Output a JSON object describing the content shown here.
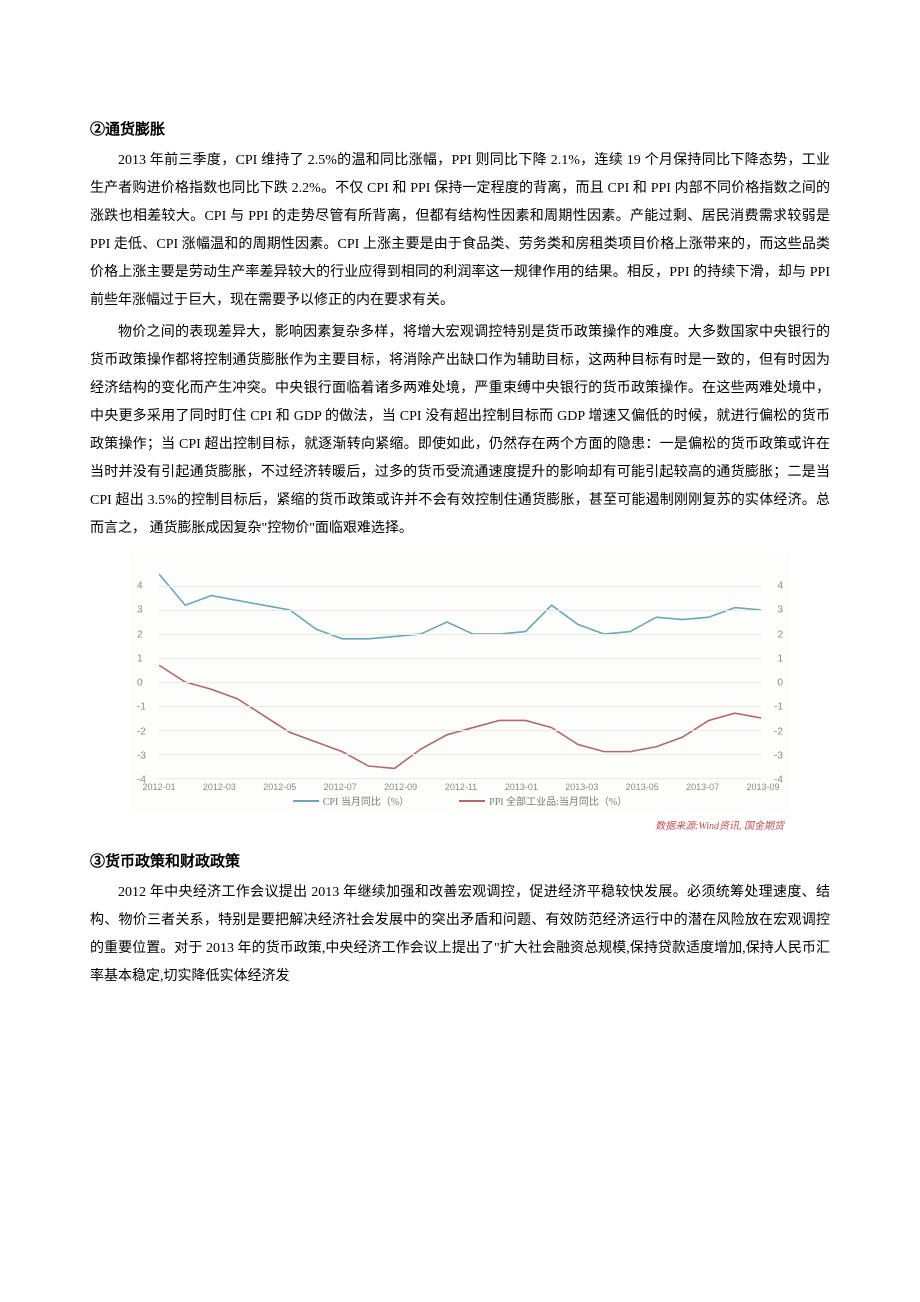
{
  "section2": {
    "heading": "②通货膨胀",
    "para1": "2013 年前三季度，CPI 维持了 2.5%的温和同比涨幅，PPI 则同比下降 2.1%，连续 19 个月保持同比下降态势，工业生产者购进价格指数也同比下跌 2.2%。不仅 CPI 和 PPI 保持一定程度的背离，而且 CPI 和 PPI 内部不同价格指数之间的涨跌也相差较大。CPI 与 PPI 的走势尽管有所背离，但都有结构性因素和周期性因素。产能过剩、居民消费需求较弱是 PPI 走低、CPI 涨幅温和的周期性因素。CPI 上涨主要是由于食品类、劳务类和房租类项目价格上涨带来的，而这些品类价格上涨主要是劳动生产率差异较大的行业应得到相同的利润率这一规律作用的结果。相反，PPI 的持续下滑，却与 PPI 前些年涨幅过于巨大，现在需要予以修正的内在要求有关。",
    "para2": "物价之间的表现差异大，影响因素复杂多样，将增大宏观调控特别是货币政策操作的难度。大多数国家中央银行的货币政策操作都将控制通货膨胀作为主要目标，将消除产出缺口作为辅助目标，这两种目标有时是一致的，但有时因为经济结构的变化而产生冲突。中央银行面临着诸多两难处境，严重束缚中央银行的货币政策操作。在这些两难处境中，中央更多采用了同时盯住 CPI 和 GDP 的做法，当 CPI 没有超出控制目标而 GDP 增速又偏低的时候，就进行偏松的货币政策操作；当 CPI 超出控制目标，就逐渐转向紧缩。即使如此，仍然存在两个方面的隐患：一是偏松的货币政策或许在当时并没有引起通货膨胀，不过经济转暖后，过多的货币受流通速度提升的影响却有可能引起较高的通货膨胀；二是当 CPI 超出 3.5%的控制目标后，紧缩的货币政策或许并不会有效控制住通货膨胀，甚至可能遏制刚刚复苏的实体经济。总而言之， 通货膨胀成因复杂\"控物价\"面临艰难选择。"
  },
  "chart": {
    "type": "line",
    "x_labels": [
      "2012-01",
      "2012-03",
      "2012-05",
      "2012-07",
      "2012-09",
      "2012-11",
      "2013-01",
      "2013-03",
      "2013-05",
      "2013-07",
      "2013-09"
    ],
    "ylim": [
      -4,
      5
    ],
    "ytick_step": 1,
    "y_ticks_left": [
      -4,
      -3,
      -2,
      -1,
      0,
      1,
      2,
      3,
      4
    ],
    "y_ticks_right": [
      -4,
      -3,
      -2,
      -1,
      0,
      1,
      2,
      3,
      4
    ],
    "background_color": "#fdfdfc",
    "grid_color": "#e9e9e8",
    "axis_label_color": "#8a8a88",
    "label_fontsize": 10,
    "line_width": 1.6,
    "series": [
      {
        "name": "CPI 当月同比（%）",
        "color": "#6aa7b8",
        "values": [
          4.5,
          3.2,
          3.6,
          3.4,
          3.2,
          3.0,
          2.2,
          1.8,
          1.8,
          1.9,
          2.0,
          2.5,
          2.0,
          2.0,
          2.1,
          3.2,
          2.4,
          2.0,
          2.1,
          2.7,
          2.6,
          2.7,
          3.1,
          3.0
        ]
      },
      {
        "name": "PPI 全部工业品:当月同比（%）",
        "color": "#b06a6a",
        "values": [
          0.7,
          0.0,
          -0.3,
          -0.7,
          -1.4,
          -2.1,
          -2.5,
          -2.9,
          -3.5,
          -3.6,
          -2.8,
          -2.2,
          -1.9,
          -1.6,
          -1.6,
          -1.9,
          -2.6,
          -2.9,
          -2.9,
          -2.7,
          -2.3,
          -1.6,
          -1.3,
          -1.5
        ]
      }
    ],
    "legend": {
      "items": [
        "CPI 当月同比（%）",
        "PPI 全部工业品:当月同比（%）"
      ],
      "position": "bottom"
    },
    "caption": "数据来源:Wind资讯, 国金期货"
  },
  "section3": {
    "heading": "③货币政策和财政政策",
    "para1": "2012 年中央经济工作会议提出 2013 年继续加强和改善宏观调控，促进经济平稳较快发展。必须统筹处理速度、结构、物价三者关系，特别是要把解决经济社会发展中的突出矛盾和问题、有效防范经济运行中的潜在风险放在宏观调控的重要位置。对于 2013 年的货币政策,中央经济工作会议上提出了\"扩大社会融资总规模,保持贷款适度增加,保持人民币汇率基本稳定,切实降低实体经济发"
  }
}
